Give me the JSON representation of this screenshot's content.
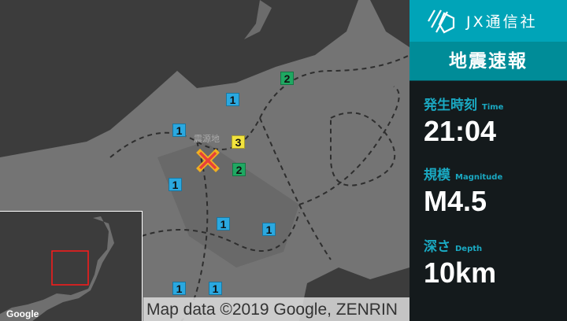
{
  "brand": {
    "name": "JX通信社"
  },
  "panel": {
    "title": "地震速報",
    "time": {
      "label": "発生時刻",
      "sub": "Time",
      "value": "21:04"
    },
    "magnitude": {
      "label": "規模",
      "sub": "Magnitude",
      "value": "M4.5"
    },
    "depth": {
      "label": "深さ",
      "sub": "Depth",
      "value": "10km"
    }
  },
  "map": {
    "epicenter_label": "震源地",
    "attribution": "Map data ©2019 Google, ZENRIN",
    "inset_logo": "Google",
    "intensity_markers": [
      "1",
      "1",
      "1",
      "1",
      "1",
      "1",
      "1",
      "2",
      "2",
      "3"
    ]
  },
  "colors": {
    "brand": "#00a4b8",
    "title_band": "#008c98",
    "label": "#1aa9c2",
    "int1": "#2aa8e0",
    "int2": "#1fa862",
    "int3": "#f2e33e",
    "epicenter": "#e8403a"
  }
}
